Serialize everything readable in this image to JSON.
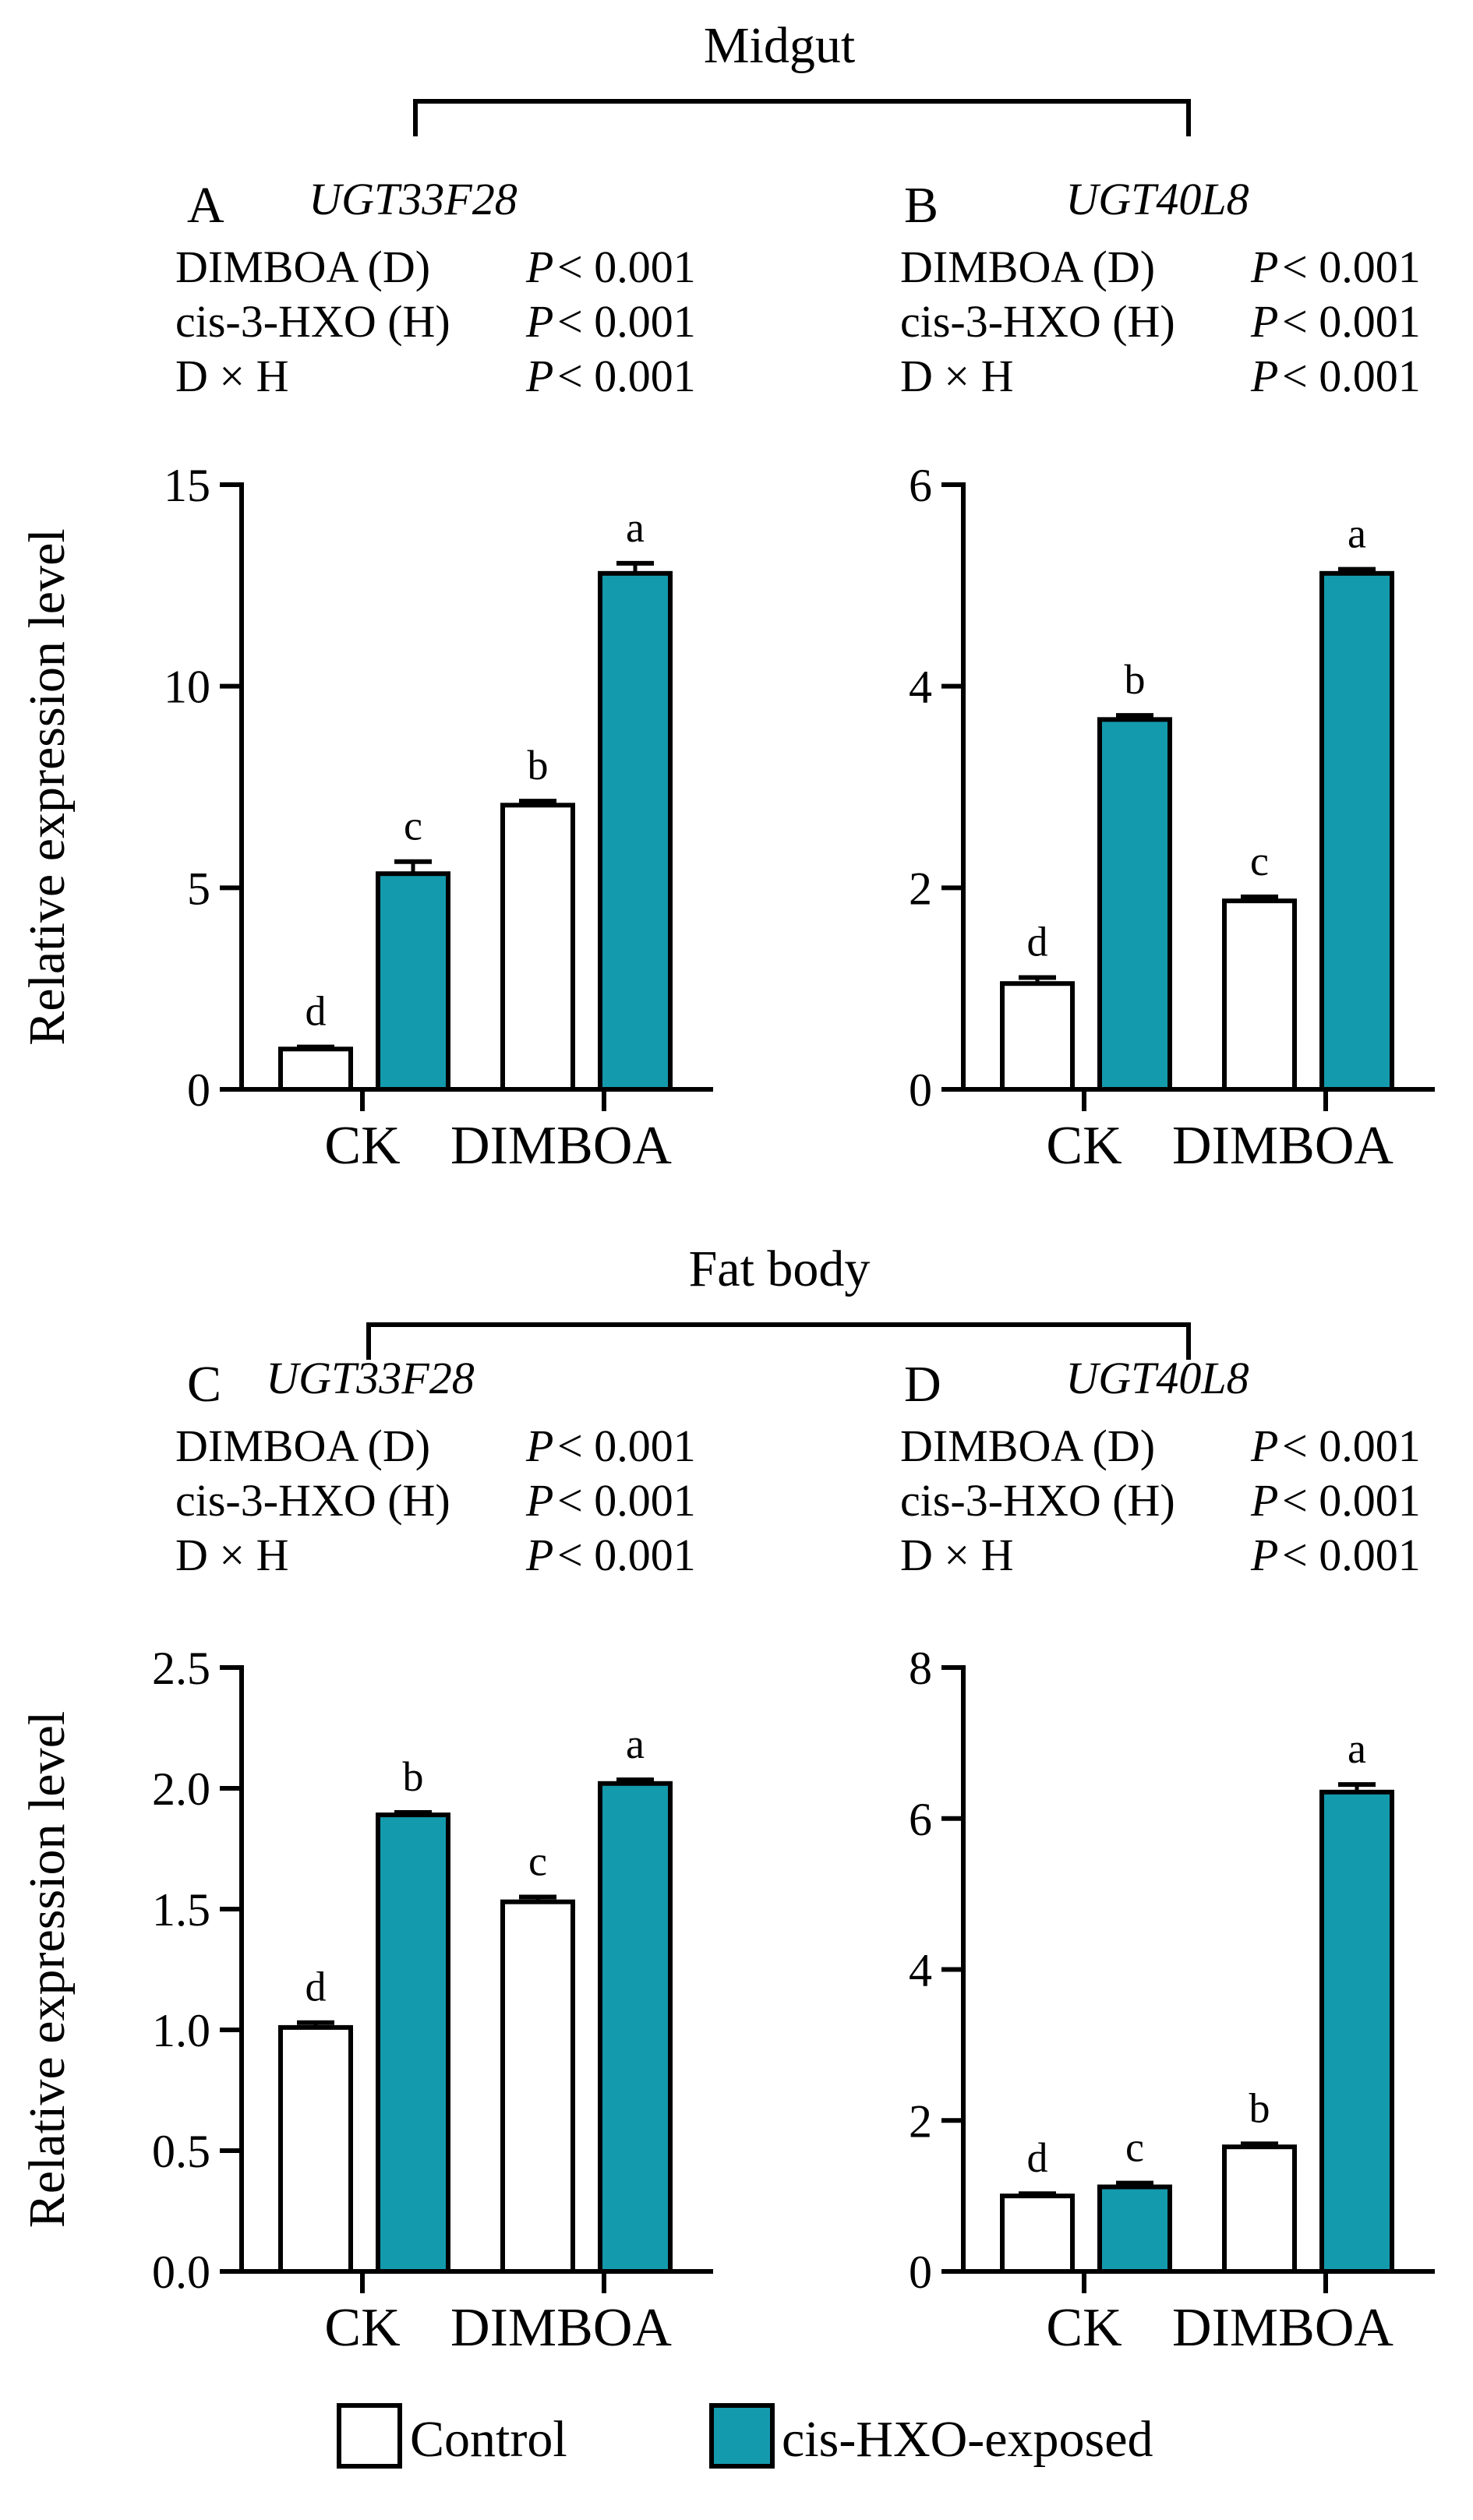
{
  "sections": [
    {
      "title": "Midgut"
    },
    {
      "title": "Fat body"
    }
  ],
  "stats_rows": [
    "DIMBOA (D)",
    "cis-3-HXO (H)",
    "D × H"
  ],
  "stats_p_letter": "P",
  "stats_p_value": "< 0.001",
  "legend": {
    "control": "Control",
    "exposed": "cis-HXO-exposed",
    "control_color": "#ffffff",
    "exposed_color": "#149aad"
  },
  "chart_data": [
    {
      "panel": "A",
      "gene": "UGT33F28",
      "tissue": "Midgut",
      "type": "bar",
      "categories": [
        "CK",
        "DIMBOA"
      ],
      "series": [
        {
          "name": "Control",
          "values": [
            1.0,
            7.05
          ],
          "errors": [
            0.05,
            0.1
          ],
          "letters": [
            "d",
            "b"
          ]
        },
        {
          "name": "cis-HXO-exposed",
          "values": [
            5.35,
            12.8
          ],
          "errors": [
            0.3,
            0.25
          ],
          "letters": [
            "c",
            "a"
          ]
        }
      ],
      "ylabel": "Relative expression level",
      "ylim": [
        0,
        15
      ],
      "yticks": [
        0,
        5,
        10,
        15
      ],
      "ytick_labels": [
        "0",
        "5",
        "10",
        "15"
      ],
      "stats": [
        "P < 0.001",
        "P < 0.001",
        "P < 0.001"
      ]
    },
    {
      "panel": "B",
      "gene": "UGT40L8",
      "tissue": "Midgut",
      "type": "bar",
      "categories": [
        "CK",
        "DIMBOA"
      ],
      "series": [
        {
          "name": "Control",
          "values": [
            1.05,
            1.87
          ],
          "errors": [
            0.06,
            0.04
          ],
          "letters": [
            "d",
            "c"
          ]
        },
        {
          "name": "cis-HXO-exposed",
          "values": [
            3.67,
            5.12
          ],
          "errors": [
            0.04,
            0.04
          ],
          "letters": [
            "b",
            "a"
          ]
        }
      ],
      "ylabel": "",
      "ylim": [
        0,
        6
      ],
      "yticks": [
        0,
        2,
        4,
        6
      ],
      "ytick_labels": [
        "0",
        "2",
        "4",
        "6"
      ],
      "stats": [
        "P < 0.001",
        "P < 0.001",
        "P < 0.001"
      ]
    },
    {
      "panel": "C",
      "gene": "UGT33F28",
      "tissue": "Fat body",
      "type": "bar",
      "categories": [
        "CK",
        "DIMBOA"
      ],
      "series": [
        {
          "name": "Control",
          "values": [
            1.01,
            1.53
          ],
          "errors": [
            0.02,
            0.02
          ],
          "letters": [
            "d",
            "c"
          ]
        },
        {
          "name": "cis-HXO-exposed",
          "values": [
            1.89,
            2.02
          ],
          "errors": [
            0.01,
            0.015
          ],
          "letters": [
            "b",
            "a"
          ]
        }
      ],
      "ylabel": "Relative expression level",
      "ylim": [
        0,
        2.5
      ],
      "yticks": [
        0,
        0.5,
        1.0,
        1.5,
        2.0,
        2.5
      ],
      "ytick_labels": [
        "0.0",
        "0.5",
        "1.0",
        "1.5",
        "2.0",
        "2.5"
      ],
      "stats": [
        "P < 0.001",
        "P < 0.001",
        "P < 0.001"
      ]
    },
    {
      "panel": "D",
      "gene": "UGT40L8",
      "tissue": "Fat body",
      "type": "bar",
      "categories": [
        "CK",
        "DIMBOA"
      ],
      "series": [
        {
          "name": "Control",
          "values": [
            1.0,
            1.65
          ],
          "errors": [
            0.03,
            0.04
          ],
          "letters": [
            "d",
            "b"
          ]
        },
        {
          "name": "cis-HXO-exposed",
          "values": [
            1.12,
            6.35
          ],
          "errors": [
            0.05,
            0.1
          ],
          "letters": [
            "c",
            "a"
          ]
        }
      ],
      "ylabel": "",
      "ylim": [
        0,
        8
      ],
      "yticks": [
        0,
        2,
        4,
        6,
        8
      ],
      "ytick_labels": [
        "0",
        "2",
        "4",
        "6",
        "8"
      ],
      "stats": [
        "P < 0.001",
        "P < 0.001",
        "P < 0.001"
      ]
    }
  ]
}
